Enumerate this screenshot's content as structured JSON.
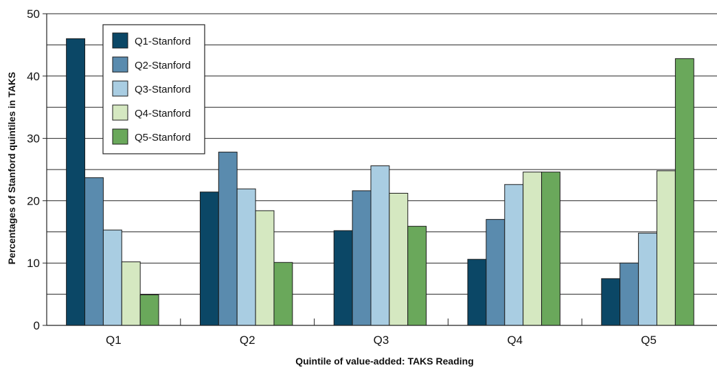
{
  "chart_data": {
    "type": "bar",
    "title": "",
    "xlabel": "Quintile of value-added: TAKS Reading",
    "ylabel": "Percentages of Stanford quintiles in TAKS",
    "categories": [
      "Q1",
      "Q2",
      "Q3",
      "Q4",
      "Q5"
    ],
    "ylim": [
      0,
      50
    ],
    "yticks": [
      0,
      10,
      20,
      30,
      40,
      50
    ],
    "grid": "horizontal",
    "legend_position": "top-left",
    "series": [
      {
        "name": "Q1-Stanford",
        "color": "#0b4766",
        "values": [
          46,
          21.4,
          15.2,
          10.6,
          7.5
        ]
      },
      {
        "name": "Q2-Stanford",
        "color": "#5a8bae",
        "values": [
          23.7,
          27.8,
          21.6,
          17,
          10
        ]
      },
      {
        "name": "Q3-Stanford",
        "color": "#a9cde2",
        "values": [
          15.3,
          21.9,
          25.6,
          22.6,
          14.8
        ]
      },
      {
        "name": "Q4-Stanford",
        "color": "#d5e8c1",
        "values": [
          10.2,
          18.4,
          21.2,
          24.6,
          24.8
        ]
      },
      {
        "name": "Q5-Stanford",
        "color": "#6aa85b",
        "values": [
          4.9,
          10.1,
          15.9,
          24.6,
          42.8
        ]
      }
    ]
  }
}
